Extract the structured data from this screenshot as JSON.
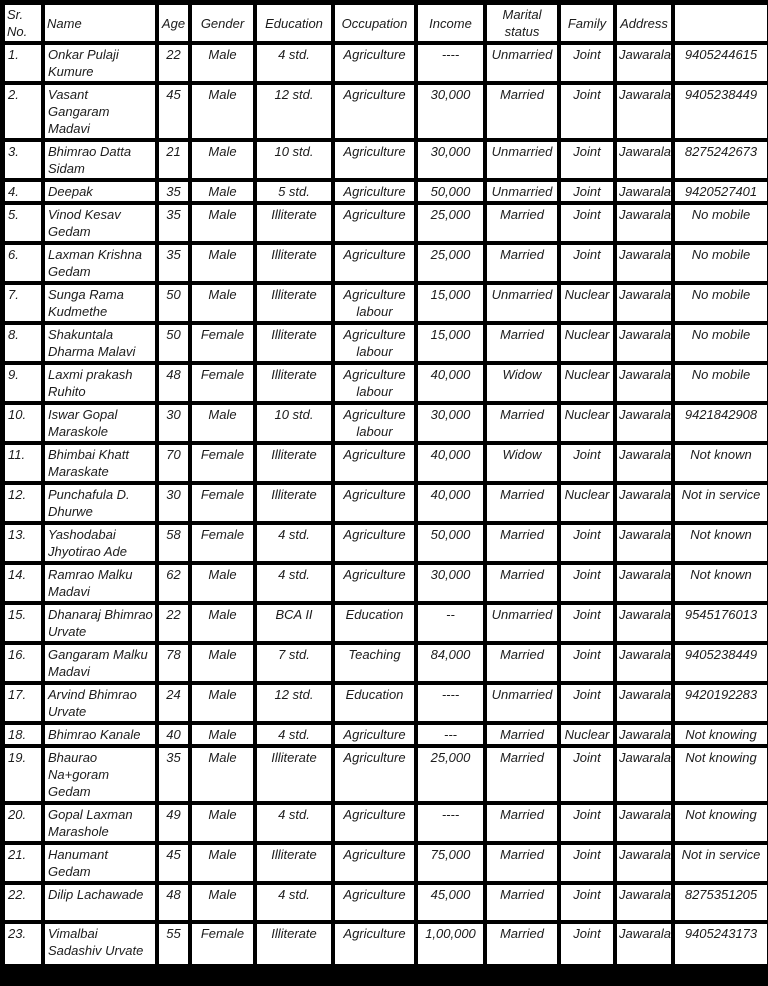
{
  "colors": {
    "grid": "#000000",
    "cell_background": "#ffffff",
    "text": "#1c1c1c"
  },
  "table": {
    "columns": [
      "Sr. No.",
      "Name",
      "Age",
      "Gender",
      "Education",
      "Occupation",
      "Income",
      "Marital status",
      "Family",
      "Address",
      ""
    ],
    "rows": [
      [
        "1.",
        "Onkar Pulaji Kumure",
        "22",
        "Male",
        "4 std.",
        "Agriculture",
        "----",
        "Unmarried",
        "Joint",
        "Jawarala",
        "9405244615"
      ],
      [
        "2.",
        "Vasant Gangaram Madavi",
        "45",
        "Male",
        "12 std.",
        "Agriculture",
        "30,000",
        "Married",
        "Joint",
        "Jawarala",
        "9405238449"
      ],
      [
        "3.",
        "Bhimrao Datta Sidam",
        "21",
        "Male",
        "10 std.",
        "Agriculture",
        "30,000",
        "Unmarried",
        "Joint",
        "Jawarala",
        "8275242673"
      ],
      [
        "4.",
        "Deepak",
        "35",
        "Male",
        "5 std.",
        "Agriculture",
        "50,000",
        "Unmarried",
        "Joint",
        "Jawarala",
        "9420527401"
      ],
      [
        "5.",
        "Vinod Kesav Gedam",
        "35",
        "Male",
        "Illiterate",
        "Agriculture",
        "25,000",
        "Married",
        "Joint",
        "Jawarala",
        "No mobile"
      ],
      [
        "6.",
        "Laxman Krishna Gedam",
        "35",
        "Male",
        "Illiterate",
        "Agriculture",
        "25,000",
        "Married",
        "Joint",
        "Jawarala",
        "No mobile"
      ],
      [
        "7.",
        "Sunga Rama Kudmethe",
        "50",
        "Male",
        "Illiterate",
        "Agriculture labour",
        "15,000",
        "Unmarried",
        "Nuclear",
        "Jawarala",
        "No mobile"
      ],
      [
        "8.",
        "Shakuntala Dharma Malavi",
        "50",
        "Female",
        "Illiterate",
        "Agriculture labour",
        "15,000",
        "Married",
        "Nuclear",
        "Jawarala",
        "No mobile"
      ],
      [
        "9.",
        "Laxmi prakash Ruhito",
        "48",
        "Female",
        "Illiterate",
        "Agriculture labour",
        "40,000",
        "Widow",
        "Nuclear",
        "Jawarala",
        "No mobile"
      ],
      [
        "10.",
        "Iswar Gopal Maraskole",
        "30",
        "Male",
        "10 std.",
        "Agriculture labour",
        "30,000",
        "Married",
        "Nuclear",
        "Jawarala",
        "9421842908"
      ],
      [
        "11.",
        "Bhimbai Khatt Maraskate",
        "70",
        "Female",
        "Illiterate",
        "Agriculture",
        "40,000",
        "Widow",
        "Joint",
        "Jawarala",
        "Not known"
      ],
      [
        "12.",
        "Punchafula D. Dhurwe",
        "30",
        "Female",
        "Illiterate",
        "Agriculture",
        "40,000",
        "Married",
        "Nuclear",
        "Jawarala",
        "Not in service"
      ],
      [
        "13.",
        "Yashodabai Jhyotirao Ade",
        "58",
        "Female",
        "4 std.",
        "Agriculture",
        "50,000",
        "Married",
        "Joint",
        "Jawarala",
        "Not known"
      ],
      [
        "14.",
        "Ramrao Malku Madavi",
        "62",
        "Male",
        "4 std.",
        "Agriculture",
        "30,000",
        "Married",
        "Joint",
        "Jawarala",
        "Not known"
      ],
      [
        "15.",
        "Dhanaraj Bhimrao Urvate",
        "22",
        "Male",
        "BCA II",
        "Education",
        "--",
        "Unmarried",
        "Joint",
        "Jawarala",
        "9545176013"
      ],
      [
        "16.",
        "Gangaram Malku Madavi",
        "78",
        "Male",
        "7 std.",
        "Teaching",
        "84,000",
        "Married",
        "Joint",
        "Jawarala",
        "9405238449"
      ],
      [
        "17.",
        "Arvind Bhimrao Urvate",
        "24",
        "Male",
        "12 std.",
        "Education",
        "----",
        "Unmarried",
        "Joint",
        "Jawarala",
        "9420192283"
      ],
      [
        "18.",
        "Bhimrao Kanale",
        "40",
        "Male",
        "4 std.",
        "Agriculture",
        "---",
        "Married",
        "Nuclear",
        "Jawarala",
        "Not knowing"
      ],
      [
        "19.",
        "Bhaurao Na+goram Gedam",
        "35",
        "Male",
        "Illiterate",
        "Agriculture",
        "25,000",
        "Married",
        "Joint",
        "Jawarala",
        "Not knowing"
      ],
      [
        "20.",
        "Gopal Laxman Marashole",
        "49",
        "Male",
        "4 std.",
        "Agriculture",
        "----",
        "Married",
        "Joint",
        "Jawarala",
        "Not knowing"
      ],
      [
        "21.",
        "Hanumant Gedam",
        "45",
        "Male",
        "Illiterate",
        "Agriculture",
        "75,000",
        "Married",
        "Joint",
        "Jawarala",
        "Not in service"
      ],
      [
        "22.",
        "Dilip Lachawade",
        "48",
        "Male",
        "4 std.",
        "Agriculture",
        "45,000",
        "Married",
        "Joint",
        "Jawarala",
        "8275351205"
      ],
      [
        "23.",
        "Vimalbai Sadashiv Urvate",
        "55",
        "Female",
        "Illiterate",
        "Agriculture",
        "1,00,000",
        "Married",
        "Joint",
        "Jawarala",
        "9405243173"
      ]
    ]
  }
}
